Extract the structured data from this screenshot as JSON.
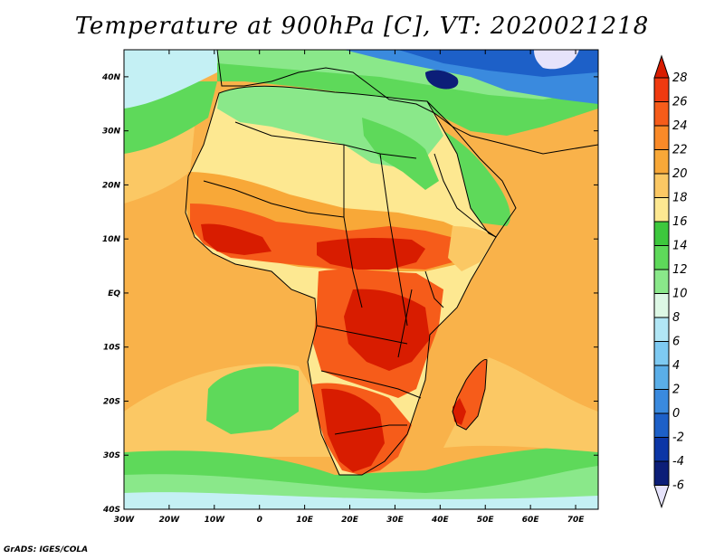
{
  "title": "Temperature at 900hPa [C], VT: 2020021218",
  "credit": "GrADS: IGES/COLA",
  "map": {
    "lon_range": [
      -30,
      75
    ],
    "lat_range": [
      -40,
      45
    ],
    "x_ticks": [
      {
        "lon": -30,
        "label": "30W"
      },
      {
        "lon": -20,
        "label": "20W"
      },
      {
        "lon": -10,
        "label": "10W"
      },
      {
        "lon": 0,
        "label": "0"
      },
      {
        "lon": 10,
        "label": "10E"
      },
      {
        "lon": 20,
        "label": "20E"
      },
      {
        "lon": 30,
        "label": "30E"
      },
      {
        "lon": 40,
        "label": "40E"
      },
      {
        "lon": 50,
        "label": "50E"
      },
      {
        "lon": 60,
        "label": "60E"
      },
      {
        "lon": 70,
        "label": "70E"
      }
    ],
    "y_ticks": [
      {
        "lat": 40,
        "label": "40N"
      },
      {
        "lat": 30,
        "label": "30N"
      },
      {
        "lat": 20,
        "label": "20N"
      },
      {
        "lat": 10,
        "label": "10N"
      },
      {
        "lat": 0,
        "label": "EQ"
      },
      {
        "lat": -10,
        "label": "10S"
      },
      {
        "lat": -20,
        "label": "20S"
      },
      {
        "lat": -30,
        "label": "30S"
      },
      {
        "lat": -40,
        "label": "40S"
      }
    ]
  },
  "colorbar": {
    "labels": [
      "28",
      "26",
      "24",
      "22",
      "20",
      "18",
      "16",
      "14",
      "12",
      "10",
      "8",
      "6",
      "4",
      "2",
      "0",
      "-2",
      "-4",
      "-6"
    ],
    "colors": [
      "#d81c00",
      "#f03a10",
      "#f65c1a",
      "#fa8a28",
      "#f8a838",
      "#fbc864",
      "#fde891",
      "#3dc83d",
      "#5ed95a",
      "#8ae88a",
      "#ddf8e5",
      "#b1e6f5",
      "#7ecaf2",
      "#5aaee8",
      "#3a8ade",
      "#1d60c8",
      "#0c36a6",
      "#0c1e78",
      "#e6e3fb"
    ]
  },
  "colors": {
    "ocean_tropical": "#f9b24a",
    "ocean_warm": "#fbc864",
    "ocean_mid": "#fde891",
    "ocean_cool": "#5ed95a",
    "ocean_cold": "#8ae88a",
    "ocean_cyan": "#c4f0f4",
    "land_med": "#8ae88a",
    "land_desert": "#fde891",
    "land_hot": "#f65c1a",
    "land_hottest": "#d81c00",
    "asia_cold": "#3a8ade",
    "asia_coldest": "#0c1e78"
  }
}
